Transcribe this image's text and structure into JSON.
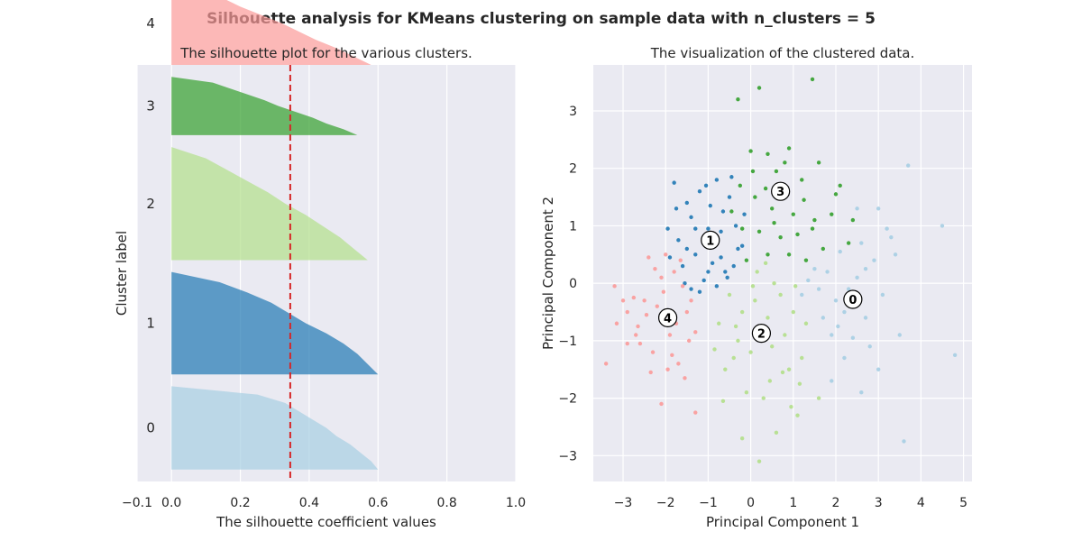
{
  "figure": {
    "suptitle": "Silhouette analysis for KMeans clustering on sample data with n_clusters = 5"
  },
  "chart_data": [
    {
      "type": "area",
      "title": "The silhouette plot for the various clusters.",
      "xlabel": "The silhouette coefficient values",
      "ylabel": "Cluster label",
      "xlim": [
        -0.1,
        1.0
      ],
      "xticks": [
        "−0.1",
        "0.0",
        "0.2",
        "0.4",
        "0.6",
        "0.8",
        "1.0"
      ],
      "xtick_values": [
        -0.1,
        0.0,
        0.2,
        0.4,
        0.6,
        0.8,
        1.0
      ],
      "grid": true,
      "average_silhouette": 0.345,
      "average_line_color": "#d62728",
      "ylim": [
        0,
        350
      ],
      "clusters": [
        {
          "label": "0",
          "color": "#a6cee3",
          "y_start": 10,
          "y_end": 80,
          "profile": [
            [
              0,
              0.6
            ],
            [
              0.1,
              0.58
            ],
            [
              0.2,
              0.55
            ],
            [
              0.3,
              0.52
            ],
            [
              0.4,
              0.48
            ],
            [
              0.5,
              0.45
            ],
            [
              0.6,
              0.41
            ],
            [
              0.7,
              0.37
            ],
            [
              0.8,
              0.33
            ],
            [
              0.9,
              0.25
            ],
            [
              1,
              0.0
            ]
          ]
        },
        {
          "label": "1",
          "color": "#1f78b4",
          "y_start": 90,
          "y_end": 176,
          "profile": [
            [
              0,
              0.6
            ],
            [
              0.1,
              0.57
            ],
            [
              0.2,
              0.54
            ],
            [
              0.3,
              0.5
            ],
            [
              0.4,
              0.45
            ],
            [
              0.5,
              0.39
            ],
            [
              0.6,
              0.34
            ],
            [
              0.7,
              0.29
            ],
            [
              0.8,
              0.22
            ],
            [
              0.9,
              0.14
            ],
            [
              1,
              0.0
            ]
          ]
        },
        {
          "label": "2",
          "color": "#b2df8a",
          "y_start": 186,
          "y_end": 281,
          "profile": [
            [
              0,
              0.57
            ],
            [
              0.1,
              0.53
            ],
            [
              0.2,
              0.49
            ],
            [
              0.3,
              0.44
            ],
            [
              0.4,
              0.39
            ],
            [
              0.5,
              0.33
            ],
            [
              0.6,
              0.28
            ],
            [
              0.7,
              0.22
            ],
            [
              0.8,
              0.16
            ],
            [
              0.9,
              0.1
            ],
            [
              1,
              0.0
            ]
          ]
        },
        {
          "label": "3",
          "color": "#33a02c",
          "y_start": 291,
          "y_end": 340,
          "profile": [
            [
              0,
              0.54
            ],
            [
              0.1,
              0.5
            ],
            [
              0.2,
              0.45
            ],
            [
              0.3,
              0.41
            ],
            [
              0.4,
              0.36
            ],
            [
              0.5,
              0.31
            ],
            [
              0.6,
              0.27
            ],
            [
              0.7,
              0.22
            ],
            [
              0.8,
              0.17
            ],
            [
              0.9,
              0.12
            ],
            [
              1,
              0.0
            ]
          ]
        },
        {
          "label": "4",
          "color": "#fb9a99",
          "y_start": 350,
          "y_end": 420,
          "profile": [
            [
              0,
              0.58
            ],
            [
              0.1,
              0.53
            ],
            [
              0.2,
              0.48
            ],
            [
              0.3,
              0.42
            ],
            [
              0.4,
              0.37
            ],
            [
              0.5,
              0.32
            ],
            [
              0.6,
              0.26
            ],
            [
              0.7,
              0.2
            ],
            [
              0.8,
              0.15
            ],
            [
              0.9,
              0.08
            ],
            [
              1,
              0.0
            ]
          ]
        }
      ]
    },
    {
      "type": "scatter",
      "title": "The visualization of the clustered data.",
      "xlabel": "Principal Component 1",
      "ylabel": "Principal Component 2",
      "xlim": [
        -3.7,
        5.2
      ],
      "ylim": [
        -3.45,
        3.8
      ],
      "xticks": [
        "−3",
        "−2",
        "−1",
        "0",
        "1",
        "2",
        "3",
        "4",
        "5"
      ],
      "xtick_values": [
        -3,
        -2,
        -1,
        0,
        1,
        2,
        3,
        4,
        5
      ],
      "yticks": [
        "−3",
        "−2",
        "−1",
        "0",
        "1",
        "2",
        "3"
      ],
      "ytick_values": [
        -3,
        -2,
        -1,
        0,
        1,
        2,
        3
      ],
      "grid": true,
      "clusters": [
        {
          "label": "0",
          "color": "#a6cee3",
          "center": [
            2.4,
            -0.28
          ],
          "points": [
            [
              1.6,
              -0.1
            ],
            [
              1.8,
              0.2
            ],
            [
              2.0,
              -0.3
            ],
            [
              2.2,
              -0.5
            ],
            [
              2.5,
              0.1
            ],
            [
              2.7,
              -0.6
            ],
            [
              2.9,
              0.4
            ],
            [
              3.1,
              -0.2
            ],
            [
              3.4,
              0.5
            ],
            [
              3.7,
              2.05
            ],
            [
              4.5,
              1.0
            ],
            [
              4.8,
              -1.25
            ],
            [
              3.6,
              -2.75
            ],
            [
              2.6,
              -1.9
            ],
            [
              2.2,
              -1.3
            ],
            [
              1.9,
              -0.9
            ],
            [
              1.7,
              -0.6
            ],
            [
              2.4,
              -0.95
            ],
            [
              2.8,
              -1.1
            ],
            [
              3.0,
              -1.5
            ],
            [
              2.1,
              0.55
            ],
            [
              2.6,
              0.7
            ],
            [
              3.2,
              0.95
            ],
            [
              1.5,
              0.25
            ],
            [
              1.2,
              -0.2
            ],
            [
              2.3,
              -0.1
            ],
            [
              2.7,
              0.25
            ],
            [
              3.0,
              1.3
            ],
            [
              2.5,
              1.3
            ],
            [
              3.3,
              0.8
            ],
            [
              1.9,
              -1.7
            ],
            [
              2.55,
              -0.35
            ],
            [
              2.05,
              -0.75
            ],
            [
              1.35,
              0.05
            ],
            [
              3.5,
              -0.9
            ]
          ]
        },
        {
          "label": "1",
          "color": "#1f78b4",
          "center": [
            -0.95,
            0.75
          ],
          "points": [
            [
              -1.8,
              1.75
            ],
            [
              -1.5,
              1.4
            ],
            [
              -1.2,
              1.6
            ],
            [
              -0.8,
              1.8
            ],
            [
              -0.5,
              1.5
            ],
            [
              -1.4,
              1.15
            ],
            [
              -1.0,
              0.95
            ],
            [
              -0.7,
              0.9
            ],
            [
              -0.3,
              0.6
            ],
            [
              -1.7,
              0.75
            ],
            [
              -1.3,
              0.5
            ],
            [
              -0.9,
              0.35
            ],
            [
              -0.6,
              0.2
            ],
            [
              -1.1,
              0.05
            ],
            [
              -1.6,
              0.3
            ],
            [
              -1.4,
              -0.1
            ],
            [
              -0.8,
              -0.05
            ],
            [
              -0.4,
              0.3
            ],
            [
              -0.2,
              0.65
            ],
            [
              -1.9,
              0.45
            ],
            [
              -1.3,
              0.95
            ],
            [
              -0.65,
              1.25
            ],
            [
              -1.05,
              1.7
            ],
            [
              -0.35,
              1.0
            ],
            [
              -1.5,
              0.6
            ],
            [
              -1.2,
              -0.15
            ],
            [
              -0.55,
              0.1
            ],
            [
              -1.75,
              1.3
            ],
            [
              -1.95,
              0.95
            ],
            [
              -1.0,
              0.2
            ],
            [
              -0.45,
              1.85
            ],
            [
              -0.7,
              0.45
            ],
            [
              -1.55,
              0.0
            ],
            [
              -0.95,
              1.35
            ],
            [
              -0.15,
              1.2
            ]
          ]
        },
        {
          "label": "2",
          "color": "#b2df8a",
          "center": [
            0.25,
            -0.87
          ],
          "points": [
            [
              -0.5,
              -0.2
            ],
            [
              -0.2,
              -0.5
            ],
            [
              0.1,
              -0.3
            ],
            [
              0.4,
              -0.6
            ],
            [
              0.7,
              -0.2
            ],
            [
              1.0,
              -0.5
            ],
            [
              -0.3,
              -1.0
            ],
            [
              0.0,
              -1.2
            ],
            [
              0.5,
              -1.1
            ],
            [
              0.8,
              -0.9
            ],
            [
              -0.6,
              -1.5
            ],
            [
              -0.1,
              -1.9
            ],
            [
              0.3,
              -2.0
            ],
            [
              0.9,
              -1.5
            ],
            [
              1.2,
              -1.3
            ],
            [
              -0.2,
              -2.7
            ],
            [
              0.6,
              -2.6
            ],
            [
              0.2,
              -3.1
            ],
            [
              1.6,
              -2.0
            ],
            [
              1.1,
              -2.3
            ],
            [
              0.15,
              0.2
            ],
            [
              0.55,
              0.0
            ],
            [
              -0.75,
              -0.7
            ],
            [
              1.3,
              -0.7
            ],
            [
              -0.85,
              -1.15
            ],
            [
              0.35,
              0.35
            ],
            [
              1.05,
              -0.05
            ],
            [
              -0.35,
              -0.75
            ],
            [
              0.75,
              -1.55
            ],
            [
              -0.65,
              -2.05
            ],
            [
              0.05,
              -0.05
            ],
            [
              1.15,
              -1.75
            ],
            [
              0.95,
              -2.15
            ],
            [
              -0.4,
              -1.3
            ],
            [
              0.45,
              -1.7
            ]
          ]
        },
        {
          "label": "3",
          "color": "#33a02c",
          "center": [
            0.7,
            1.6
          ],
          "points": [
            [
              -0.3,
              3.2
            ],
            [
              0.2,
              3.4
            ],
            [
              1.45,
              3.55
            ],
            [
              0.0,
              2.3
            ],
            [
              0.4,
              2.25
            ],
            [
              0.9,
              2.35
            ],
            [
              1.6,
              2.1
            ],
            [
              0.6,
              1.95
            ],
            [
              1.2,
              1.8
            ],
            [
              2.1,
              1.7
            ],
            [
              0.1,
              1.5
            ],
            [
              0.5,
              1.3
            ],
            [
              1.0,
              1.2
            ],
            [
              1.5,
              1.1
            ],
            [
              1.9,
              1.2
            ],
            [
              0.2,
              0.9
            ],
            [
              0.7,
              0.8
            ],
            [
              1.1,
              0.85
            ],
            [
              2.3,
              0.7
            ],
            [
              0.4,
              0.5
            ],
            [
              0.9,
              0.5
            ],
            [
              1.3,
              0.4
            ],
            [
              2.4,
              1.1
            ],
            [
              -0.2,
              0.95
            ],
            [
              1.7,
              0.6
            ],
            [
              0.35,
              1.65
            ],
            [
              0.8,
              2.1
            ],
            [
              -0.1,
              0.4
            ],
            [
              1.45,
              0.95
            ],
            [
              0.55,
              1.05
            ],
            [
              -0.45,
              1.25
            ],
            [
              2.0,
              1.55
            ],
            [
              1.25,
              1.45
            ],
            [
              -0.25,
              1.7
            ],
            [
              0.05,
              1.95
            ]
          ]
        },
        {
          "label": "4",
          "color": "#fb9a99",
          "center": [
            -1.95,
            -0.6
          ],
          "points": [
            [
              -3.4,
              -1.4
            ],
            [
              -3.2,
              -0.05
            ],
            [
              -2.9,
              -0.5
            ],
            [
              -2.7,
              -0.9
            ],
            [
              -2.5,
              -0.3
            ],
            [
              -2.3,
              -1.2
            ],
            [
              -2.1,
              0.1
            ],
            [
              -1.9,
              -0.9
            ],
            [
              -1.7,
              -1.4
            ],
            [
              -1.5,
              -0.5
            ],
            [
              -1.3,
              -2.25
            ],
            [
              -2.1,
              -2.1
            ],
            [
              -2.4,
              0.45
            ],
            [
              -2.0,
              0.5
            ],
            [
              -1.8,
              0.2
            ],
            [
              -1.6,
              -0.05
            ],
            [
              -1.4,
              -0.3
            ],
            [
              -2.2,
              -0.4
            ],
            [
              -2.6,
              -1.05
            ],
            [
              -1.85,
              -1.25
            ],
            [
              -2.9,
              -1.05
            ],
            [
              -3.15,
              -0.7
            ],
            [
              -2.25,
              0.25
            ],
            [
              -1.55,
              -1.65
            ],
            [
              -1.95,
              -1.5
            ],
            [
              -2.45,
              -0.55
            ],
            [
              -1.3,
              -0.85
            ],
            [
              -2.75,
              -0.25
            ],
            [
              -1.65,
              0.4
            ],
            [
              -2.05,
              -0.15
            ],
            [
              -2.35,
              -1.55
            ],
            [
              -1.45,
              -1.0
            ],
            [
              -1.75,
              -0.7
            ],
            [
              -2.65,
              -0.75
            ],
            [
              -3.0,
              -0.3
            ]
          ]
        }
      ]
    }
  ]
}
